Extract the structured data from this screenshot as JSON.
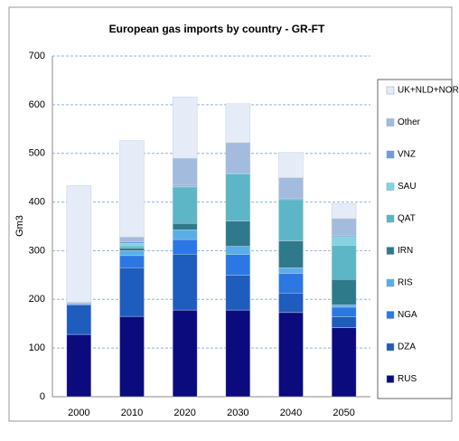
{
  "chart_data": {
    "type": "stacked-bar",
    "title": "European gas imports by country - GR-FT",
    "y_label": "Gm3",
    "categories": [
      "2000",
      "2010",
      "2020",
      "2030",
      "2040",
      "2050"
    ],
    "series": [
      {
        "name": "RUS",
        "color": "#0b0b7e",
        "values": [
          128,
          165,
          178,
          178,
          173,
          142
        ]
      },
      {
        "name": "DZA",
        "color": "#1e5cbd",
        "values": [
          60,
          100,
          115,
          72,
          40,
          22
        ]
      },
      {
        "name": "NGA",
        "color": "#2b78e4",
        "values": [
          2,
          25,
          30,
          42,
          40,
          20
        ]
      },
      {
        "name": "RIS",
        "color": "#5aaee8",
        "values": [
          0,
          10,
          20,
          17,
          12,
          5
        ]
      },
      {
        "name": "IRN",
        "color": "#2e7a8a",
        "values": [
          0,
          5,
          13,
          52,
          55,
          52
        ]
      },
      {
        "name": "QAT",
        "color": "#5cb6c6",
        "values": [
          0,
          5,
          75,
          97,
          85,
          70
        ]
      },
      {
        "name": "SAU",
        "color": "#82d4e2",
        "values": [
          0,
          5,
          2,
          2,
          0,
          18
        ]
      },
      {
        "name": "VNZ",
        "color": "#6e9ed8",
        "values": [
          2,
          3,
          2,
          2,
          2,
          2
        ]
      },
      {
        "name": "Other",
        "color": "#a3bbdd",
        "values": [
          2,
          10,
          55,
          60,
          43,
          35
        ]
      },
      {
        "name": "UK+NLD+NOR",
        "color": "#e6ecf7",
        "values": [
          240,
          198,
          126,
          80,
          52,
          31
        ]
      }
    ],
    "ylim": [
      0,
      700
    ],
    "yticks": [
      0,
      100,
      200,
      300,
      400,
      500,
      600,
      700
    ],
    "grid": true
  }
}
